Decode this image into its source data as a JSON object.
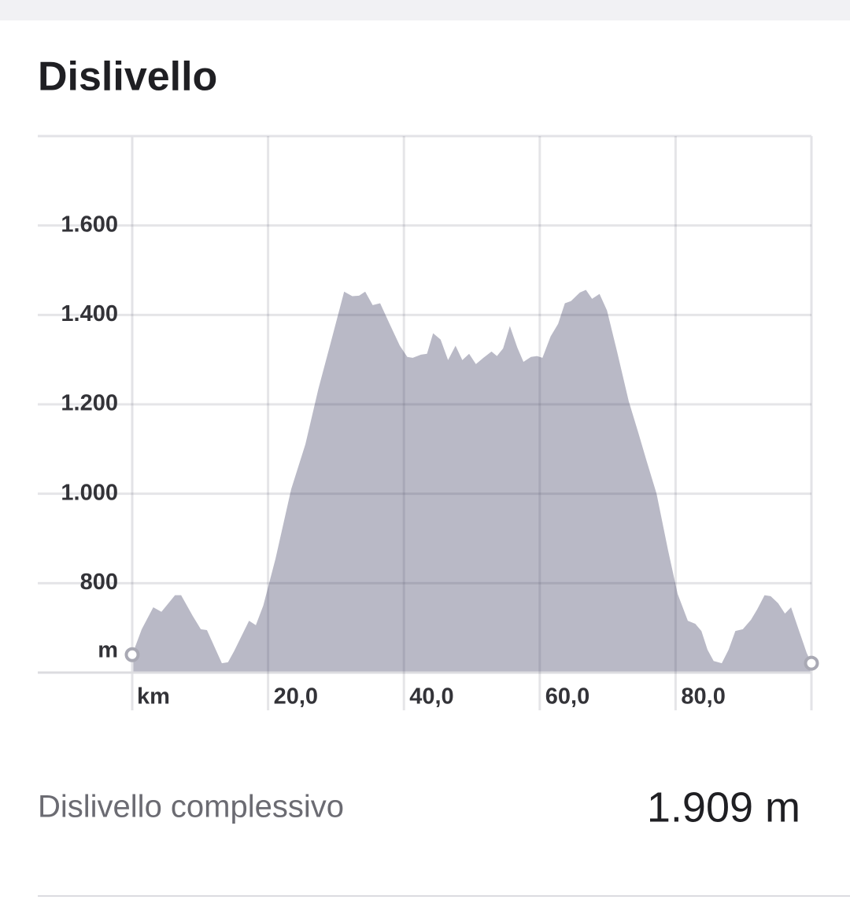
{
  "chart_data": {
    "type": "area",
    "title": "Dislivello",
    "x_label": "km",
    "y_label": "m",
    "x": [
      0,
      1.4,
      3.1,
      4.3,
      6.3,
      7.2,
      8.9,
      10.1,
      11.0,
      13.2,
      14.1,
      15.0,
      17.2,
      18.2,
      19.3,
      21.1,
      23.4,
      25.5,
      27.4,
      29.4,
      31.2,
      32.4,
      33.4,
      34.3,
      35.4,
      36.5,
      37.8,
      39.4,
      40.5,
      41.3,
      42.5,
      43.4,
      44.3,
      45.4,
      46.5,
      47.6,
      48.6,
      49.6,
      50.6,
      51.7,
      52.9,
      53.7,
      54.6,
      55.6,
      56.7,
      57.6,
      58.7,
      59.6,
      60.4,
      61.6,
      62.7,
      63.7,
      64.6,
      65.9,
      66.8,
      67.7,
      68.8,
      69.9,
      71.4,
      73.1,
      74.5,
      75.7,
      77.2,
      78.9,
      80.3,
      81.8,
      82.9,
      83.8,
      84.7,
      85.6,
      86.8,
      87.8,
      88.8,
      89.9,
      91.1,
      92.0,
      93.1,
      94.0,
      95.1,
      96.1,
      97.0,
      98.1,
      99.3,
      100
    ],
    "values": [
      640,
      697,
      746,
      736,
      773,
      773,
      727,
      697,
      695,
      621,
      623,
      648,
      716,
      706,
      750,
      855,
      1010,
      1111,
      1234,
      1348,
      1452,
      1442,
      1443,
      1452,
      1422,
      1426,
      1383,
      1331,
      1306,
      1304,
      1311,
      1313,
      1359,
      1345,
      1299,
      1331,
      1299,
      1313,
      1290,
      1304,
      1318,
      1308,
      1325,
      1375,
      1327,
      1295,
      1306,
      1308,
      1304,
      1352,
      1380,
      1426,
      1431,
      1450,
      1456,
      1436,
      1447,
      1410,
      1317,
      1207,
      1137,
      1075,
      1000,
      873,
      776,
      716,
      709,
      693,
      651,
      626,
      621,
      651,
      693,
      697,
      718,
      741,
      773,
      771,
      755,
      732,
      746,
      697,
      644,
      621
    ],
    "color": "#b9b9c6",
    "xlim": [
      0,
      100
    ],
    "xticks": [
      {
        "value": 20,
        "label": "20,0"
      },
      {
        "value": 40,
        "label": "40,0"
      },
      {
        "value": 60,
        "label": "60,0"
      },
      {
        "value": 80,
        "label": "80,0"
      }
    ],
    "ylim": [
      600,
      1800
    ],
    "yticks": [
      {
        "value": 800,
        "label": "800"
      },
      {
        "value": 1000,
        "label": "1.000"
      },
      {
        "value": 1200,
        "label": "1.200"
      },
      {
        "value": 1400,
        "label": "1.400"
      },
      {
        "value": 1600,
        "label": "1.600"
      }
    ],
    "grid": true
  },
  "summary": {
    "label": "Dislivello complessivo",
    "value": "1.909 m"
  }
}
